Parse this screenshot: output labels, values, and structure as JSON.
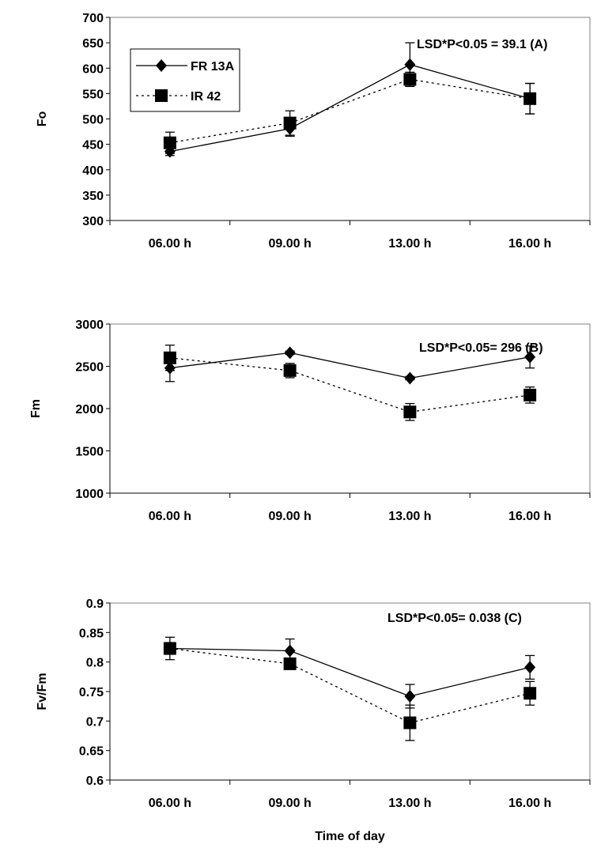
{
  "chart_data": [
    {
      "type": "line",
      "panel": "A",
      "ylabel": "Fo",
      "xlabel": "",
      "categories": [
        "06.00 h",
        "09.00 h",
        "13.00 h",
        "16.00 h"
      ],
      "ylim": [
        300,
        700
      ],
      "yticks": [
        300,
        350,
        400,
        450,
        500,
        550,
        600,
        650,
        700
      ],
      "annotation": "LSD*P<0.05 = 39.1 (A)",
      "legend": {
        "position": "top-left",
        "entries": [
          "FR 13A",
          "IR 42"
        ]
      },
      "series": [
        {
          "name": "FR 13A",
          "marker": "diamond",
          "line": "solid",
          "values": [
            436,
            481,
            607,
            540
          ],
          "errors": [
            8,
            15,
            43,
            30
          ]
        },
        {
          "name": "IR 42",
          "marker": "square",
          "line": "dotted",
          "values": [
            453,
            492,
            578,
            540
          ],
          "errors": [
            21,
            24,
            14,
            30
          ]
        }
      ]
    },
    {
      "type": "line",
      "panel": "B",
      "ylabel": "Fm",
      "xlabel": "",
      "categories": [
        "06.00 h",
        "09.00 h",
        "13.00 h",
        "16.00 h"
      ],
      "ylim": [
        1000,
        3000
      ],
      "yticks": [
        1000,
        1500,
        2000,
        2500,
        3000
      ],
      "annotation": "LSD*P<0.05= 296 (B)",
      "series": [
        {
          "name": "FR 13A",
          "marker": "diamond",
          "line": "solid",
          "values": [
            2480,
            2660,
            2360,
            2610
          ],
          "errors": [
            160,
            20,
            20,
            130
          ]
        },
        {
          "name": "IR 42",
          "marker": "square",
          "line": "dotted",
          "values": [
            2600,
            2450,
            1960,
            2160
          ],
          "errors": [
            150,
            85,
            100,
            95
          ]
        }
      ]
    },
    {
      "type": "line",
      "panel": "C",
      "ylabel": "Fv/Fm",
      "xlabel": "Time of day",
      "categories": [
        "06.00 h",
        "09.00 h",
        "13.00 h",
        "16.00 h"
      ],
      "ylim": [
        0.6,
        0.9
      ],
      "yticks": [
        0.6,
        0.65,
        0.7,
        0.75,
        0.8,
        0.85,
        0.9
      ],
      "annotation": "LSD*P<0.05= 0.038 (C)",
      "series": [
        {
          "name": "FR 13A",
          "marker": "diamond",
          "line": "solid",
          "values": [
            0.823,
            0.819,
            0.742,
            0.791
          ],
          "errors": [
            0.019,
            0.02,
            0.02,
            0.02
          ]
        },
        {
          "name": "IR 42",
          "marker": "square",
          "line": "dotted",
          "values": [
            0.823,
            0.797,
            0.697,
            0.747
          ],
          "errors": [
            0.01,
            0.006,
            0.03,
            0.02
          ]
        }
      ]
    }
  ]
}
